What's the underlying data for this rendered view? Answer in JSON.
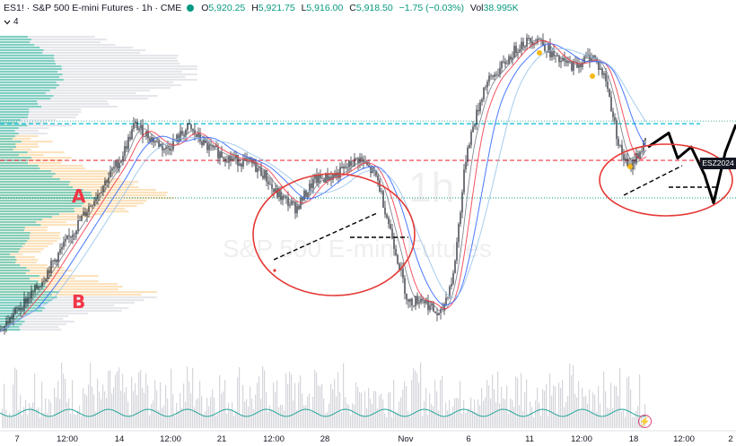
{
  "header": {
    "symbol": "ES1! · S&P 500 E-mini Futures · 1h · CME",
    "o_label": "O",
    "o": "5,920.25",
    "h_label": "H",
    "h": "5,921.75",
    "l_label": "L",
    "l": "5,916.00",
    "c_label": "C",
    "c": "5,918.50",
    "change": "−1.75 (−0.03%)",
    "vol_label": "Vol",
    "vol": "38.995K",
    "indicator_count": "4"
  },
  "watermark": {
    "ticker": "1h",
    "name": "S&P 500 E-mini Futures"
  },
  "price_tag": "ESZ2024",
  "markers": {
    "a": "A",
    "b": "B"
  },
  "colors": {
    "candles": "#131722",
    "ma_red": "#f23645",
    "ma_blue": "#2962ff",
    "ma_gray": "#787b86",
    "ma_light": "#90bfe8",
    "level_cyan": "#00bcd4",
    "level_red": "#f23645",
    "level_green": "#089981",
    "profile_green": "#5fc7b4",
    "profile_orange": "#fbd8a8",
    "annotation": "#e53935",
    "volume": "#b2b5be",
    "oscillator": "#26a69a"
  },
  "icons": [
    "eye-icon",
    "chevron-down-icon",
    "bolt-icon"
  ],
  "chart_data": {
    "type": "line",
    "x_ticks": [
      "7",
      "12:00",
      "14",
      "12:00",
      "21",
      "12:00",
      "28",
      "Nov",
      "6",
      "11",
      "12:00",
      "18",
      "12:00",
      "2"
    ],
    "anchors": [
      [
        0,
        0.0
      ],
      [
        20,
        0.08
      ],
      [
        40,
        0.15
      ],
      [
        60,
        0.25
      ],
      [
        80,
        0.35
      ],
      [
        100,
        0.45
      ],
      [
        120,
        0.55
      ],
      [
        135,
        0.62
      ],
      [
        150,
        0.74
      ],
      [
        165,
        0.7
      ],
      [
        185,
        0.65
      ],
      [
        210,
        0.73
      ],
      [
        230,
        0.66
      ],
      [
        255,
        0.62
      ],
      [
        280,
        0.6
      ],
      [
        295,
        0.56
      ],
      [
        305,
        0.5
      ],
      [
        330,
        0.44
      ],
      [
        350,
        0.54
      ],
      [
        375,
        0.56
      ],
      [
        400,
        0.62
      ],
      [
        420,
        0.55
      ],
      [
        440,
        0.3
      ],
      [
        455,
        0.1
      ],
      [
        470,
        0.12
      ],
      [
        490,
        0.05
      ],
      [
        505,
        0.2
      ],
      [
        520,
        0.65
      ],
      [
        540,
        0.88
      ],
      [
        560,
        0.95
      ],
      [
        580,
        1.03
      ],
      [
        600,
        1.05
      ],
      [
        620,
        0.97
      ],
      [
        640,
        0.95
      ],
      [
        660,
        0.99
      ],
      [
        675,
        0.9
      ],
      [
        690,
        0.66
      ],
      [
        700,
        0.58
      ],
      [
        720,
        0.68
      ]
    ],
    "forecast": [
      [
        722,
        0.66
      ],
      [
        745,
        0.71
      ],
      [
        755,
        0.62
      ],
      [
        770,
        0.66
      ],
      [
        785,
        0.56
      ],
      [
        795,
        0.46
      ],
      [
        808,
        0.64
      ],
      [
        820,
        0.74
      ]
    ],
    "levels": [
      {
        "name": "resistance",
        "value": 0.74
      },
      {
        "name": "support",
        "value": 0.58
      },
      {
        "name": "mid",
        "value": 0.81
      }
    ]
  }
}
